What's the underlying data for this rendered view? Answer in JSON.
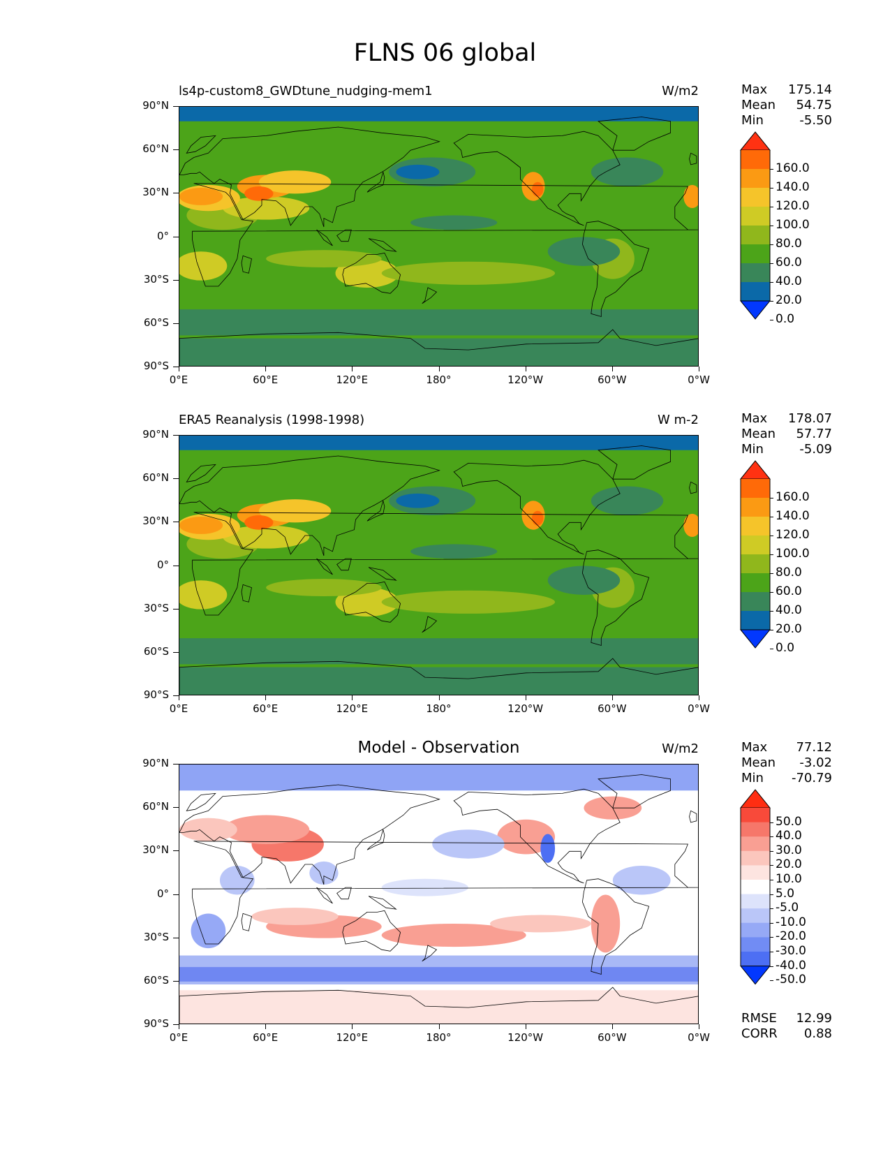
{
  "title": "FLNS 06 global",
  "panels": [
    {
      "id": "model",
      "left_title": "ls4p-custom8_GWDtune_nudging-mem1",
      "center_title": "",
      "units": "W/m2",
      "stats": {
        "max_label": "Max",
        "max": "175.14",
        "mean_label": "Mean",
        "mean": "54.75",
        "min_label": "Min",
        "min": "-5.50"
      },
      "colorbar": {
        "labels": [
          "160.0",
          "140.0",
          "120.0",
          "100.0",
          "80.0",
          "60.0",
          "40.0",
          "20.0",
          "0.0"
        ],
        "colors": [
          "#ff3212",
          "#ff6a08",
          "#fb9a13",
          "#f5c42a",
          "#cfcb25",
          "#90b71c",
          "#4ca419",
          "#398659",
          "#0b69a8",
          "#0238fe"
        ]
      }
    },
    {
      "id": "obs",
      "left_title": "ERA5 Reanalysis (1998-1998)",
      "center_title": "",
      "units": "W m-2",
      "stats": {
        "max_label": "Max",
        "max": "178.07",
        "mean_label": "Mean",
        "mean": "57.77",
        "min_label": "Min",
        "min": "-5.09"
      },
      "colorbar": {
        "labels": [
          "160.0",
          "140.0",
          "120.0",
          "100.0",
          "80.0",
          "60.0",
          "40.0",
          "20.0",
          "0.0"
        ],
        "colors": [
          "#ff3212",
          "#ff6a08",
          "#fb9a13",
          "#f5c42a",
          "#cfcb25",
          "#90b71c",
          "#4ca419",
          "#398659",
          "#0b69a8",
          "#0238fe"
        ]
      }
    },
    {
      "id": "diff",
      "left_title": "",
      "center_title": "Model - Observation",
      "units": "W/m2",
      "stats": {
        "max_label": "Max",
        "max": "77.12",
        "mean_label": "Mean",
        "mean": "-3.02",
        "min_label": "Min",
        "min": "-70.79"
      },
      "colorbar": {
        "labels": [
          "50.0",
          "40.0",
          "30.0",
          "20.0",
          "10.0",
          "5.0",
          "-5.0",
          "-10.0",
          "-20.0",
          "-30.0",
          "-40.0",
          "-50.0"
        ],
        "colors": [
          "#ff2e12",
          "#f84a3a",
          "#f6776a",
          "#f99f93",
          "#fbc6bd",
          "#fde4e0",
          "#ffffff",
          "#dde3fb",
          "#bac6f8",
          "#96a9f6",
          "#718cf4",
          "#4d6ff3",
          "#0238fe"
        ]
      },
      "rmse_label": "RMSE",
      "rmse": "12.99",
      "corr_label": "CORR",
      "corr": "0.88"
    }
  ],
  "axes": {
    "lat_labels": [
      "90°N",
      "60°N",
      "30°N",
      "0°",
      "30°S",
      "60°S",
      "90°S"
    ],
    "lon_labels": [
      "0°E",
      "60°E",
      "120°E",
      "180°",
      "120°W",
      "60°W",
      "0°W"
    ]
  }
}
